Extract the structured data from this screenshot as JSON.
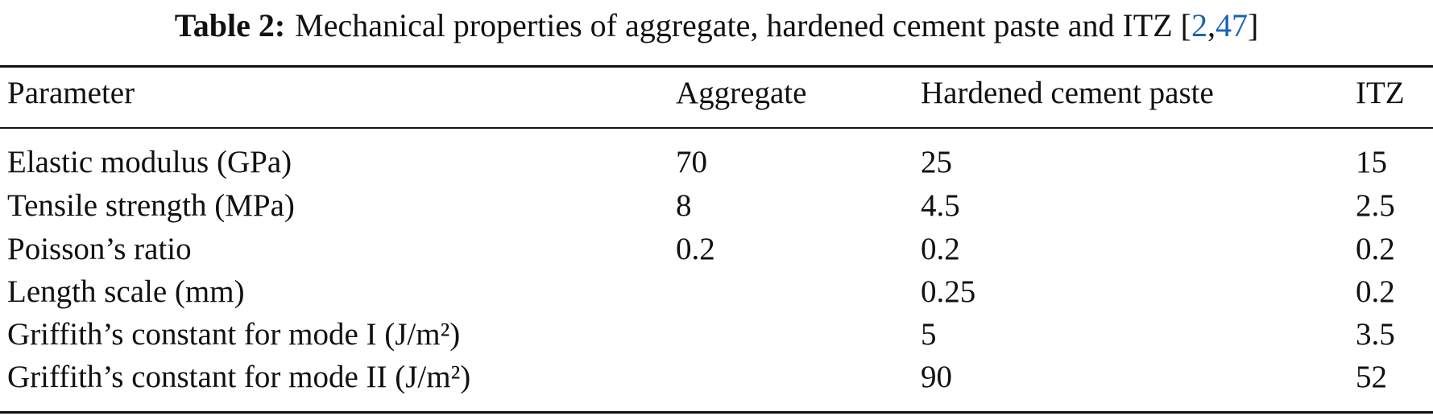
{
  "caption": {
    "label": "Table 2:",
    "text": "Mechanical properties of aggregate, hardened cement paste and ITZ",
    "citation": {
      "open": "[",
      "refs": [
        "2",
        "47"
      ],
      "separator": ",",
      "close": "]"
    }
  },
  "table": {
    "header": [
      "Parameter",
      "Aggregate",
      "Hardened cement paste",
      "ITZ"
    ],
    "rows": [
      [
        "Elastic modulus (GPa)",
        70,
        25,
        15
      ],
      [
        "Tensile strength (MPa)",
        8,
        4.5,
        2.5
      ],
      [
        "Poisson’s ratio",
        0.2,
        0.2,
        0.2
      ],
      [
        "Length scale (mm)",
        null,
        0.25,
        0.2
      ],
      [
        "Griffith’s constant for mode I (J/m²)",
        null,
        5,
        3.5
      ],
      [
        "Griffith’s constant for mode II (J/m²)",
        null,
        90,
        52
      ]
    ]
  }
}
